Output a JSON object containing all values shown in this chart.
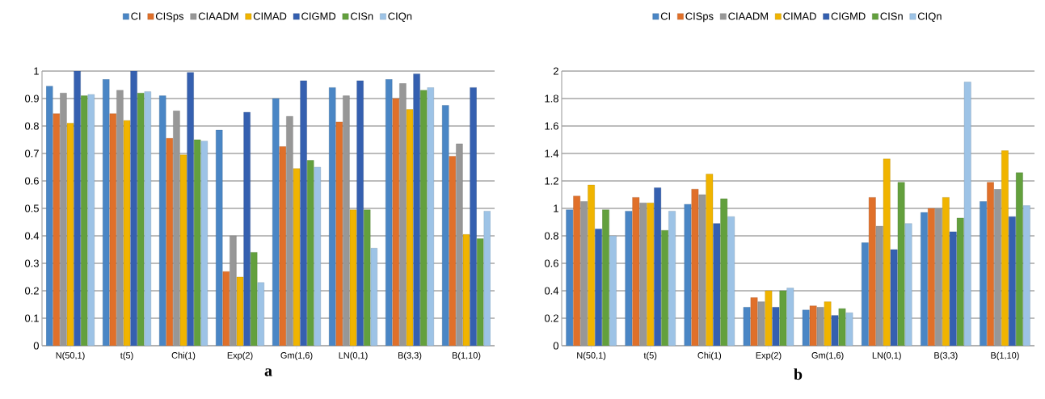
{
  "chart_data": [
    {
      "type": "bar",
      "title": "a",
      "categories": [
        "N(50,1)",
        "t(5)",
        "Chi(1)",
        "Exp(2)",
        "Gm(1,6)",
        "LN(0,1)",
        "B(3,3)",
        "B(1,10)"
      ],
      "series": [
        {
          "name": "CI",
          "color": "#4a86c5",
          "values": [
            0.945,
            0.97,
            0.91,
            0.785,
            0.9,
            0.94,
            0.97,
            0.875
          ]
        },
        {
          "name": "CISps",
          "color": "#e0702a",
          "values": [
            0.845,
            0.845,
            0.755,
            0.27,
            0.725,
            0.815,
            0.9,
            0.69
          ]
        },
        {
          "name": "CIAADM",
          "color": "#979797",
          "values": [
            0.92,
            0.93,
            0.855,
            0.4,
            0.835,
            0.91,
            0.955,
            0.735
          ]
        },
        {
          "name": "CIMAD",
          "color": "#f0b400",
          "values": [
            0.81,
            0.82,
            0.695,
            0.25,
            0.645,
            0.495,
            0.86,
            0.405
          ]
        },
        {
          "name": "CIGMD",
          "color": "#3560b0",
          "values": [
            1.0,
            1.0,
            0.995,
            0.85,
            0.965,
            0.965,
            0.99,
            0.94
          ]
        },
        {
          "name": "CISn",
          "color": "#63a03d",
          "values": [
            0.91,
            0.92,
            0.75,
            0.34,
            0.675,
            0.495,
            0.93,
            0.39
          ]
        },
        {
          "name": "CIQn",
          "color": "#9dc3e6",
          "values": [
            0.915,
            0.925,
            0.745,
            0.23,
            0.65,
            0.355,
            0.94,
            0.49
          ]
        }
      ],
      "ylim": [
        0,
        1
      ],
      "yticks": [
        0,
        0.1,
        0.2,
        0.3,
        0.4,
        0.5,
        0.6,
        0.7,
        0.8,
        0.9,
        1
      ],
      "grid": "y",
      "legend": "top"
    },
    {
      "type": "bar",
      "title": "b",
      "categories": [
        "N(50,1)",
        "t(5)",
        "Chi(1)",
        "Exp(2)",
        "Gm(1,6)",
        "LN(0,1)",
        "B(3,3)",
        "B(1,10)"
      ],
      "series": [
        {
          "name": "CI",
          "color": "#4a86c5",
          "values": [
            0.99,
            0.98,
            1.03,
            0.28,
            0.26,
            0.75,
            0.97,
            1.05
          ]
        },
        {
          "name": "CISps",
          "color": "#e0702a",
          "values": [
            1.09,
            1.08,
            1.14,
            0.35,
            0.29,
            1.08,
            1.0,
            1.19
          ]
        },
        {
          "name": "CIAADM",
          "color": "#979797",
          "values": [
            1.05,
            1.04,
            1.1,
            0.32,
            0.28,
            0.87,
            1.0,
            1.14
          ]
        },
        {
          "name": "CIMAD",
          "color": "#f0b400",
          "values": [
            1.17,
            1.04,
            1.25,
            0.4,
            0.32,
            1.36,
            1.08,
            1.42
          ]
        },
        {
          "name": "CIGMD",
          "color": "#3560b0",
          "values": [
            0.85,
            1.15,
            0.89,
            0.28,
            0.22,
            0.7,
            0.83,
            0.94
          ]
        },
        {
          "name": "CISn",
          "color": "#63a03d",
          "values": [
            0.99,
            0.84,
            1.07,
            0.4,
            0.27,
            1.19,
            0.93,
            1.26
          ]
        },
        {
          "name": "CIQn",
          "color": "#9dc3e6",
          "values": [
            0.8,
            0.98,
            0.94,
            0.42,
            0.24,
            0.89,
            1.92,
            1.02
          ]
        }
      ],
      "ylim": [
        0,
        2
      ],
      "yticks": [
        0,
        0.2,
        0.4,
        0.6,
        0.8,
        1,
        1.2,
        1.4,
        1.6,
        1.8,
        2
      ],
      "grid": "y",
      "legend": "top"
    }
  ]
}
